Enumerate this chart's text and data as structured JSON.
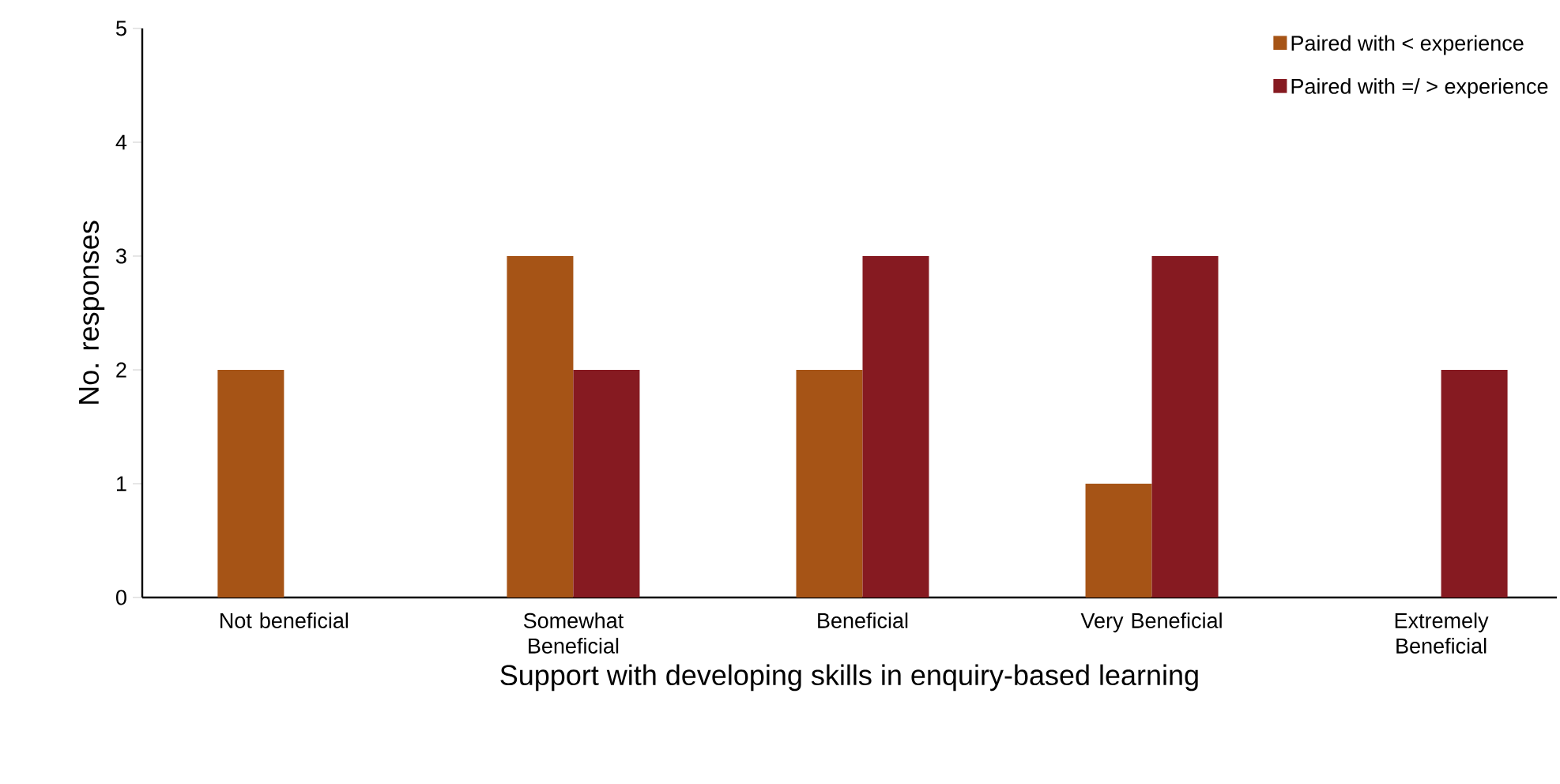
{
  "chart_data": {
    "type": "bar",
    "xlabel": "Support with developing skills in enquiry-based learning",
    "ylabel": "No. responses",
    "categories": [
      "Not beneficial",
      "Somewhat Beneficial",
      "Beneficial",
      "Very Beneficial",
      "Extremely Beneficial"
    ],
    "series": [
      {
        "name": "Paired with < experience",
        "color": "#a65416",
        "values": [
          2,
          3,
          2,
          1,
          0
        ]
      },
      {
        "name": "Paired with =/ > experience",
        "color": "#861a21",
        "values": [
          0,
          2,
          3,
          3,
          2
        ]
      }
    ],
    "ylim": [
      0,
      5
    ],
    "yticks": [
      0,
      1,
      2,
      3,
      4,
      5
    ],
    "grid": false,
    "legend": "top right"
  }
}
